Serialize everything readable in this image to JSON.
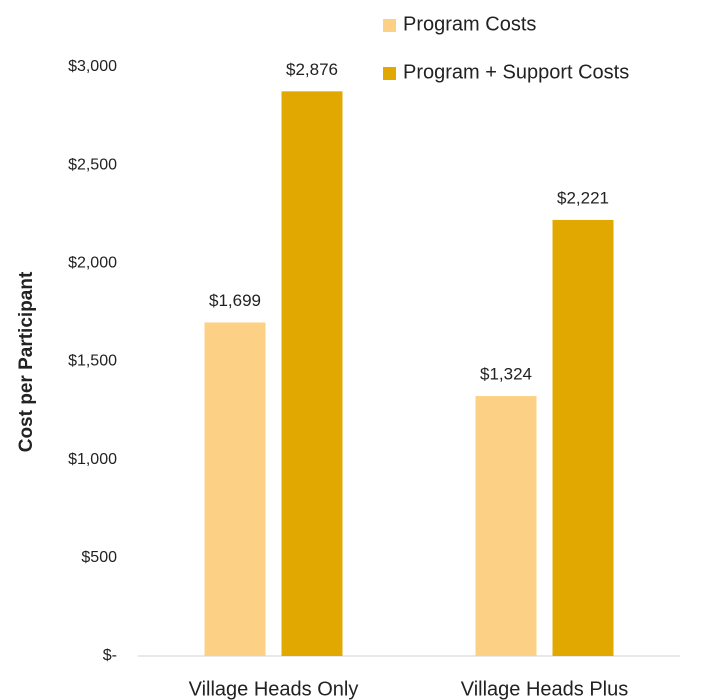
{
  "chart_data": {
    "type": "bar",
    "y_label": "Cost per Participant",
    "categories": [
      "Village Heads Only",
      "Village Heads Plus"
    ],
    "series": [
      {
        "name": "Program Costs",
        "color": "#fdd185",
        "values": [
          1699,
          1324
        ],
        "value_labels": [
          "$1,699",
          "$1,324"
        ]
      },
      {
        "name": "Program + Support Costs",
        "color": "#e0a800",
        "values": [
          2876,
          2221
        ],
        "value_labels": [
          "$2,876",
          "$2,221"
        ]
      }
    ],
    "ylim": [
      0,
      3000
    ],
    "yticks": [
      {
        "value": 0,
        "label": "$-"
      },
      {
        "value": 500,
        "label": "$500"
      },
      {
        "value": 1000,
        "label": "$1,000"
      },
      {
        "value": 1500,
        "label": "$1,500"
      },
      {
        "value": 2000,
        "label": "$2,000"
      },
      {
        "value": 2500,
        "label": "$2,500"
      },
      {
        "value": 3000,
        "label": "$3,000"
      }
    ]
  }
}
